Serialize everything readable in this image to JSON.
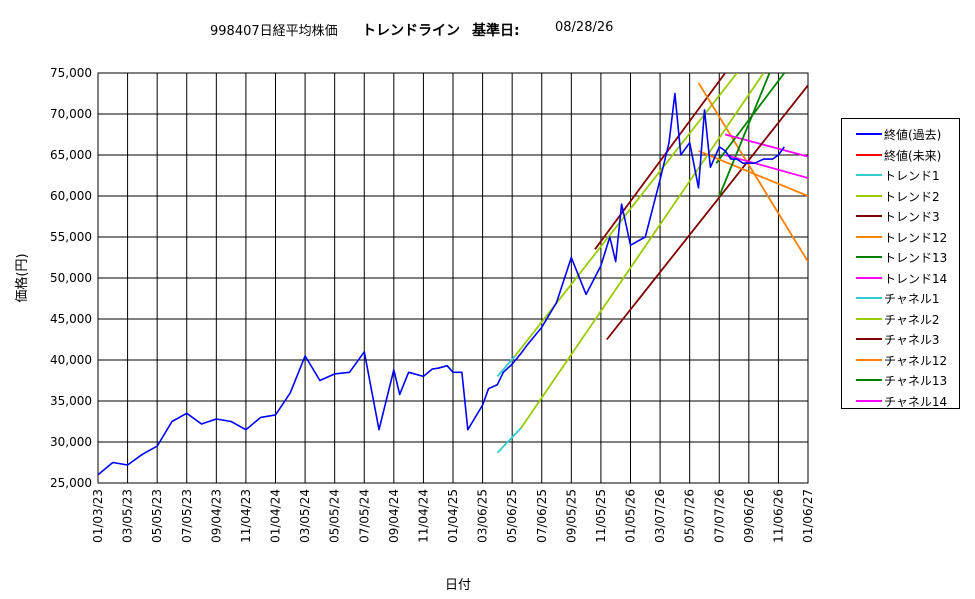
{
  "title": {
    "code_name": "998407日経平均株価",
    "subtitle": "トレンドライン",
    "base_label": "基準日:",
    "base_date": "08/28/26"
  },
  "chart_data": {
    "type": "line",
    "ylabel": "価格(円)",
    "xlabel": "日付",
    "ylim": [
      25000,
      75000
    ],
    "y_ticks": [
      "25,000",
      "30,000",
      "35,000",
      "40,000",
      "45,000",
      "50,000",
      "55,000",
      "60,000",
      "65,000",
      "70,000",
      "75,000"
    ],
    "x_ticks": [
      "01/03/23",
      "03/05/23",
      "05/05/23",
      "07/05/23",
      "09/04/23",
      "11/04/23",
      "01/04/24",
      "03/05/24",
      "05/05/24",
      "07/05/24",
      "09/04/24",
      "11/04/24",
      "01/04/25",
      "03/06/25",
      "05/06/25",
      "07/06/25",
      "09/05/25",
      "11/05/25",
      "01/05/26",
      "03/07/26",
      "05/07/26",
      "07/07/26",
      "09/06/26",
      "11/06/26",
      "01/06/27"
    ],
    "grid": true,
    "legend_position": "right",
    "series": [
      {
        "name": "終値(過去)",
        "color": "#0000ff",
        "x": [
          0,
          0.5,
          1,
          1.5,
          2,
          2.5,
          3,
          3.5,
          4,
          4.5,
          5,
          5.5,
          6,
          6.5,
          7,
          7.5,
          8,
          8.5,
          9,
          9.5,
          10,
          10.2,
          10.5,
          11,
          11.3,
          11.5,
          11.8,
          12,
          12.3,
          12.5,
          13,
          13.2,
          13.5,
          13.7,
          14,
          14.3,
          14.5,
          15,
          15.5,
          16,
          16.5,
          17,
          17.3,
          17.5,
          17.7,
          18,
          18.5,
          19,
          19.3,
          19.5,
          19.7,
          20,
          20.3,
          20.5,
          20.7,
          21,
          21.2,
          21.4,
          21.6,
          21.8,
          22,
          22.2,
          22.5,
          22.8,
          23,
          23.2
        ],
        "values": [
          26000,
          27500,
          27200,
          28500,
          29500,
          32500,
          33500,
          32200,
          32800,
          32500,
          31500,
          33000,
          33300,
          36000,
          40500,
          37500,
          38300,
          38500,
          41000,
          31500,
          38800,
          35800,
          38500,
          38000,
          38900,
          39000,
          39300,
          38500,
          38500,
          31500,
          34500,
          36500,
          37000,
          38500,
          39500,
          40800,
          41800,
          44000,
          47000,
          52500,
          48000,
          51500,
          55000,
          52000,
          59000,
          54000,
          55000,
          62000,
          66500,
          72500,
          65000,
          66500,
          61000,
          70500,
          63500,
          66000,
          65500,
          64500,
          64500,
          64000,
          64000,
          64000,
          64500,
          64500,
          65000,
          66000
        ]
      },
      {
        "name": "終値(未来)",
        "color": "#ff0000",
        "x": [],
        "values": []
      },
      {
        "name": "トレンド1",
        "color": "#33cccc",
        "x": [
          13.5,
          14.1
        ],
        "values": [
          38000,
          40500
        ]
      },
      {
        "name": "トレンド2",
        "color": "#99cc00",
        "x": [
          14.1,
          21.6
        ],
        "values": [
          40500,
          75000
        ]
      },
      {
        "name": "トレンド3",
        "color": "#800000",
        "x": [
          16.8,
          21.2
        ],
        "values": [
          53500,
          75000
        ]
      },
      {
        "name": "トレンド12",
        "color": "#ff8000",
        "x": [
          20.3,
          24.0
        ],
        "values": [
          73800,
          52000
        ]
      },
      {
        "name": "トレンド13",
        "color": "#008000",
        "x": [
          20.9,
          23.2
        ],
        "values": [
          64000,
          75000
        ]
      },
      {
        "name": "トレンド14",
        "color": "#ff00ff",
        "x": [
          21.2,
          24.0
        ],
        "values": [
          67500,
          64800
        ]
      },
      {
        "name": "チャネル1",
        "color": "#33cccc",
        "x": [
          13.5,
          14.3
        ],
        "values": [
          28700,
          31700
        ]
      },
      {
        "name": "チャネル2",
        "color": "#99cc00",
        "x": [
          14.3,
          22.5
        ],
        "values": [
          31700,
          75000
        ]
      },
      {
        "name": "チャネル3",
        "color": "#800000",
        "x": [
          17.2,
          24.0
        ],
        "values": [
          42500,
          73500
        ]
      },
      {
        "name": "チャネル12",
        "color": "#ff8000",
        "x": [
          20.3,
          24.0
        ],
        "values": [
          65500,
          60000
        ]
      },
      {
        "name": "チャネル13",
        "color": "#008000",
        "x": [
          21.0,
          22.7
        ],
        "values": [
          60000,
          75000
        ]
      },
      {
        "name": "チャネル14",
        "color": "#ff00ff",
        "x": [
          21.2,
          24.0
        ],
        "values": [
          65000,
          62200
        ]
      }
    ]
  }
}
